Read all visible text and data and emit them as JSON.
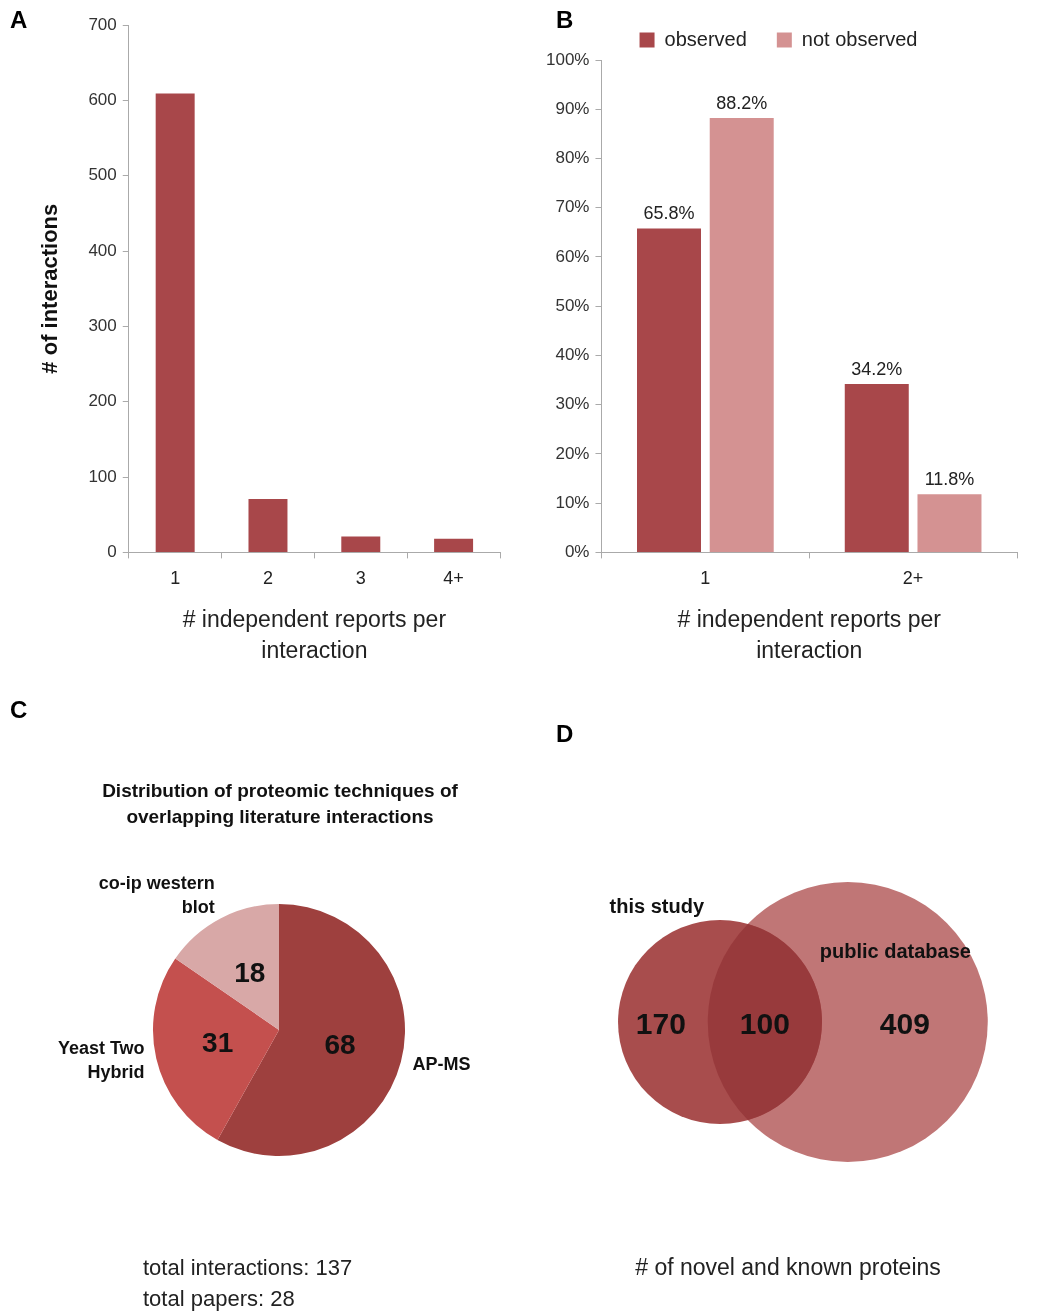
{
  "chart_data": [
    {
      "type": "bar",
      "annotations": [
        "A"
      ],
      "ylabel": "# of interactions",
      "xlabel": "# independent reports per interaction",
      "categories": [
        "1",
        "2",
        "3",
        "4+"
      ],
      "values": [
        609,
        71,
        21,
        18
      ],
      "color": "#a8474a",
      "ylim": [
        0,
        700
      ],
      "yticks": [
        0,
        100,
        200,
        300,
        400,
        500,
        600,
        700
      ],
      "grid": false
    },
    {
      "type": "bar",
      "annotations": [
        "B"
      ],
      "xlabel": "# independent reports per interaction",
      "categories": [
        "1",
        "2+"
      ],
      "series": [
        {
          "name": "observed",
          "color": "#a8474a",
          "values": [
            65.8,
            34.2
          ],
          "value_labels": [
            "65.8%",
            "34.2%"
          ]
        },
        {
          "name": "not observed",
          "color": "#d49292",
          "values": [
            88.2,
            11.8
          ],
          "value_labels": [
            "88.2%",
            "11.8%"
          ]
        }
      ],
      "ylim": [
        0,
        100
      ],
      "yticks": [
        {
          "value": 0,
          "label": "0%"
        },
        {
          "value": 10,
          "label": "10%"
        },
        {
          "value": 20,
          "label": "20%"
        },
        {
          "value": 30,
          "label": "30%"
        },
        {
          "value": 40,
          "label": "40%"
        },
        {
          "value": 50,
          "label": "50%"
        },
        {
          "value": 60,
          "label": "60%"
        },
        {
          "value": 70,
          "label": "70%"
        },
        {
          "value": 80,
          "label": "80%"
        },
        {
          "value": 90,
          "label": "90%"
        },
        {
          "value": 100,
          "label": "100%"
        }
      ],
      "grid": false,
      "legend": "top"
    },
    {
      "type": "pie",
      "annotations": [
        "C",
        "total interactions: 137",
        "total papers: 28"
      ],
      "title": "Distribution of proteomic techniques of overlapping literature interactions",
      "categories": [
        "AP-MS",
        "Yeast Two Hybrid",
        "co-ip western blot"
      ],
      "values": [
        68,
        31,
        18
      ],
      "colors": [
        "#9e403e",
        "#c4504e",
        "#d8a8a7"
      ],
      "data_labels": true
    },
    {
      "type": "other",
      "annotations": [
        "D"
      ],
      "xlabel": "# of novel and known proteins",
      "categories": [
        "this study",
        null,
        "public database"
      ],
      "values": [
        170,
        100,
        409
      ],
      "colors": [
        "#a84d4d",
        "#983a3c",
        "#c07676"
      ],
      "data_labels": true
    }
  ]
}
